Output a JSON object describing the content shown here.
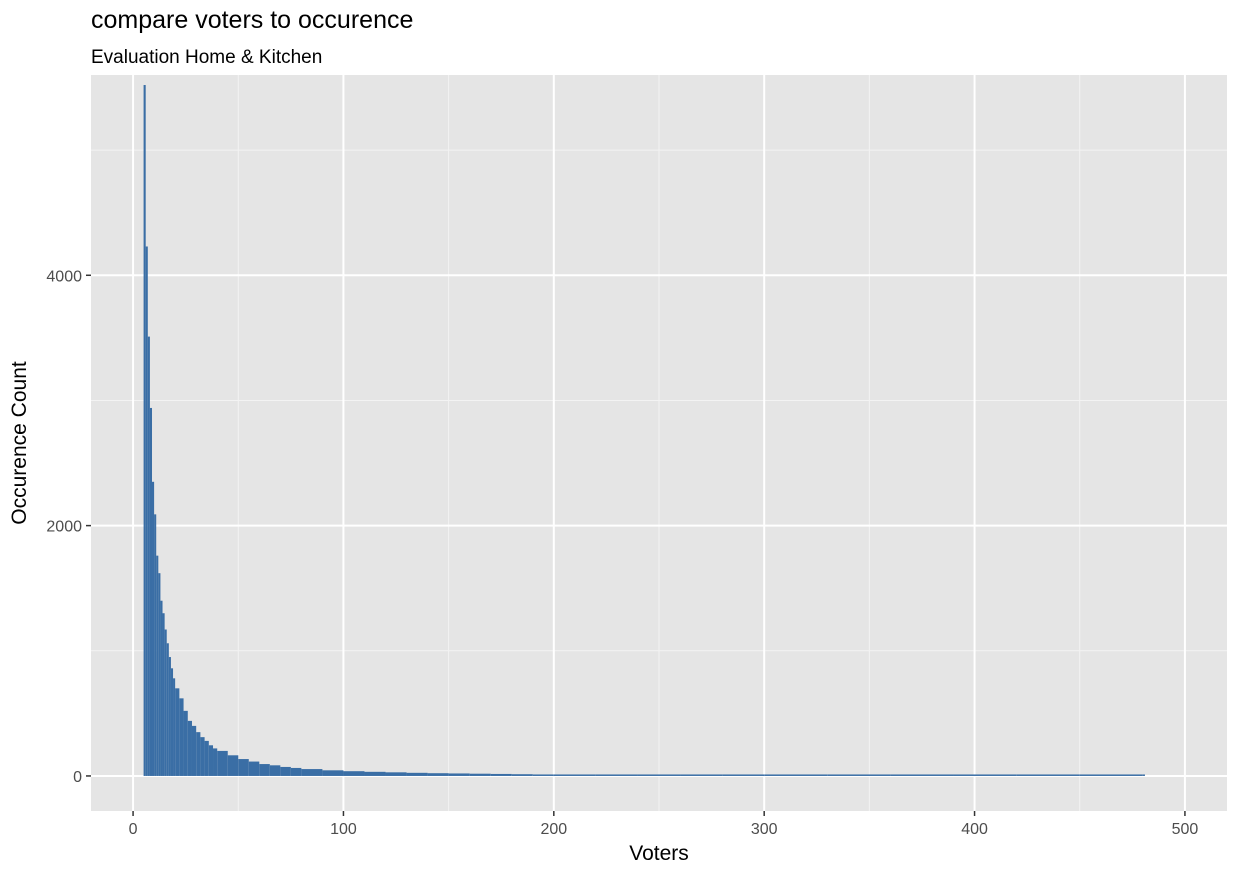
{
  "chart_data": {
    "type": "bar",
    "title": "compare voters to occurence",
    "subtitle": "Evaluation Home & Kitchen",
    "xlabel": "Voters",
    "ylabel": "Occurence Count",
    "xlim": [
      -20,
      520
    ],
    "ylim": [
      -280,
      5600
    ],
    "x_ticks": [
      0,
      100,
      200,
      300,
      400,
      500
    ],
    "x_tick_labels": [
      "0",
      "100",
      "200",
      "300",
      "400",
      "500"
    ],
    "y_ticks": [
      0,
      2000,
      4000
    ],
    "y_tick_labels": [
      "0",
      "2000",
      "4000"
    ],
    "grid": true,
    "bar_color": "#3a6ea5",
    "panel_color": "#e5e5e5",
    "series": [
      {
        "x": [
          5,
          6,
          7,
          8,
          9,
          10,
          11,
          12,
          13,
          14,
          15,
          16,
          17,
          18,
          19,
          20,
          22,
          24,
          26,
          28,
          30,
          32,
          34,
          36,
          38,
          40,
          45,
          50,
          55,
          60,
          65,
          70,
          75,
          80,
          90,
          100,
          110,
          120,
          130,
          140,
          150,
          160,
          170,
          180,
          190,
          200,
          220,
          240,
          260,
          280,
          300,
          330,
          360,
          390,
          420,
          450,
          480
        ],
        "values": [
          5520,
          4230,
          3510,
          2940,
          2350,
          2090,
          1760,
          1620,
          1400,
          1300,
          1170,
          1060,
          950,
          860,
          780,
          700,
          620,
          520,
          440,
          400,
          350,
          310,
          280,
          245,
          220,
          200,
          165,
          135,
          115,
          95,
          85,
          72,
          64,
          55,
          45,
          38,
          33,
          29,
          25,
          22,
          20,
          18,
          16,
          14,
          12,
          11,
          9,
          8,
          7,
          6,
          5,
          4,
          3,
          3,
          2,
          2,
          2
        ]
      }
    ]
  }
}
